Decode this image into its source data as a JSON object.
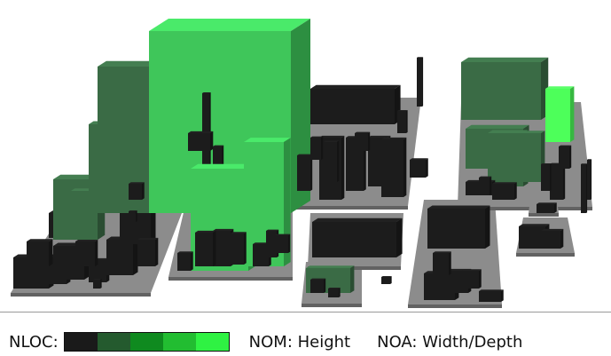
{
  "legend": {
    "nloc_label": "NLOC:",
    "nom_text": "NOM:  Height",
    "noa_text": "NOA:  Width/Depth",
    "ramp_colors": [
      "#1a1a1a",
      "#245a2e",
      "#0f8a1f",
      "#22bd31",
      "#2ff243"
    ]
  },
  "colors": {
    "platform": "#8c8c8c",
    "dark_building": "#1c1c1c",
    "mid_green": "#3a6b45",
    "light_green": "#3fc65a",
    "bright_green": "#4dff5a"
  }
}
